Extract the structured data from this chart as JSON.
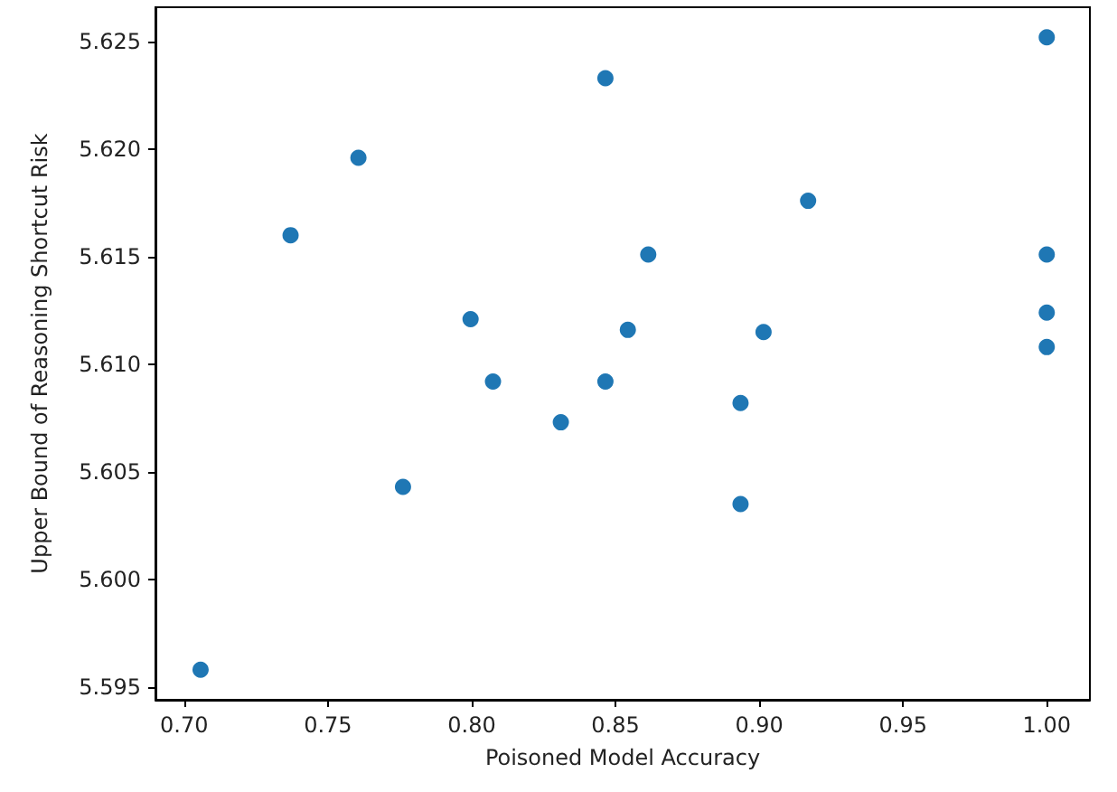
{
  "chart_data": {
    "type": "scatter",
    "xlabel": "Poisoned Model Accuracy",
    "ylabel": "Upper Bound of Reasoning Shortcut Risk",
    "x": [
      0.7057,
      0.737,
      0.7606,
      0.7761,
      0.7996,
      0.8074,
      0.831,
      0.8465,
      0.8465,
      0.8543,
      0.8614,
      0.8935,
      0.8935,
      0.9015,
      0.917,
      1.0,
      1.0,
      1.0,
      1.0
    ],
    "series": [
      {
        "color": "#1f77b4",
        "values": [
          5.5958,
          5.616,
          5.6196,
          5.6043,
          5.6121,
          5.6092,
          5.6073,
          5.6233,
          5.6092,
          5.6116,
          5.6151,
          5.6082,
          5.6035,
          5.6115,
          5.6176,
          5.6252,
          5.6151,
          5.6124,
          5.6108
        ]
      }
    ],
    "xlim": [
      0.69,
      1.015
    ],
    "ylim": [
      5.5944,
      5.6266
    ],
    "xticks": [
      {
        "value": 0.7,
        "label": "0.70"
      },
      {
        "value": 0.75,
        "label": "0.75"
      },
      {
        "value": 0.8,
        "label": "0.80"
      },
      {
        "value": 0.85,
        "label": "0.85"
      },
      {
        "value": 0.9,
        "label": "0.90"
      },
      {
        "value": 0.95,
        "label": "0.95"
      },
      {
        "value": 1.0,
        "label": "1.00"
      }
    ],
    "yticks": [
      5.595,
      {
        "value": 5.6,
        "label": "5.600"
      },
      5.605,
      {
        "value": 5.61,
        "label": "5.610"
      },
      5.615,
      {
        "value": 5.62,
        "label": "5.620"
      },
      5.625
    ],
    "grid": false,
    "marker": "circle"
  }
}
